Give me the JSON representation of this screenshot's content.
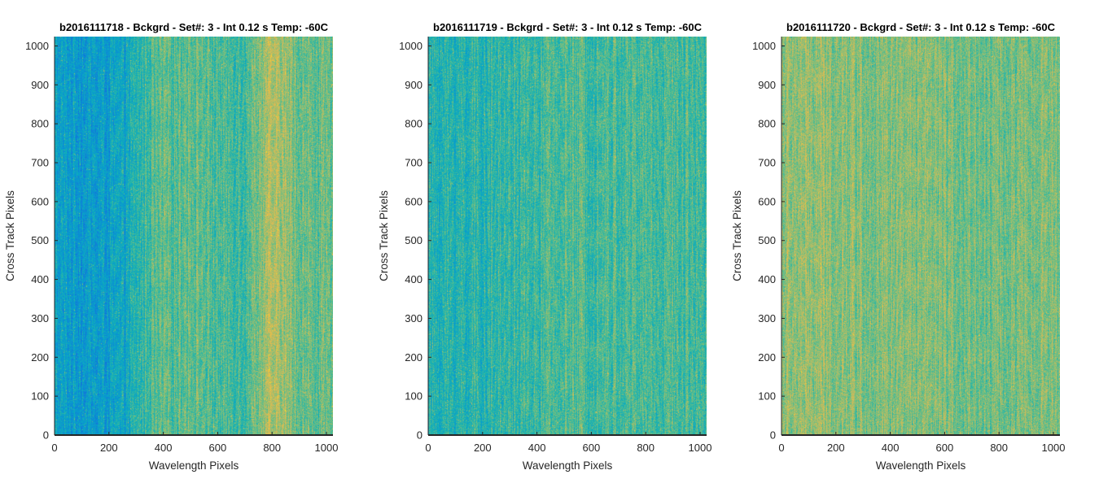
{
  "chart_data": [
    {
      "type": "heatmap",
      "title": "b2016111718 - Bckgrd - Set#: 3 - Int 0.12 s Temp: -60C",
      "xlabel": "Wavelength Pixels",
      "ylabel": "Cross Track Pixels",
      "xlim": [
        0,
        1024
      ],
      "ylim": [
        0,
        1024
      ],
      "xticks": [
        0,
        200,
        400,
        600,
        800,
        1000
      ],
      "yticks": [
        0,
        100,
        200,
        300,
        400,
        500,
        600,
        700,
        800,
        900,
        1000
      ],
      "colormap": "parula",
      "color_profile": {
        "x": [
          0,
          150,
          250,
          350,
          500,
          600,
          700,
          780,
          830,
          900,
          1024
        ],
        "level": [
          0.32,
          0.3,
          0.33,
          0.47,
          0.52,
          0.47,
          0.47,
          0.6,
          0.6,
          0.52,
          0.5
        ]
      }
    },
    {
      "type": "heatmap",
      "title": "b2016111719 - Bckgrd - Set#: 3 - Int 0.12 s Temp: -60C",
      "xlabel": "Wavelength Pixels",
      "ylabel": "Cross Track Pixels",
      "xlim": [
        0,
        1024
      ],
      "ylim": [
        0,
        1024
      ],
      "xticks": [
        0,
        200,
        400,
        600,
        800,
        1000
      ],
      "yticks": [
        0,
        100,
        200,
        300,
        400,
        500,
        600,
        700,
        800,
        900,
        1000
      ],
      "colormap": "parula",
      "color_profile": {
        "x": [
          0,
          200,
          400,
          500,
          700,
          1024
        ],
        "level": [
          0.4,
          0.42,
          0.45,
          0.48,
          0.47,
          0.47
        ]
      }
    },
    {
      "type": "heatmap",
      "title": "b2016111720 - Bckgrd - Set#: 3 - Int 0.12 s Temp: -60C",
      "xlabel": "Wavelength Pixels",
      "ylabel": "Cross Track Pixels",
      "xlim": [
        0,
        1024
      ],
      "ylim": [
        0,
        1024
      ],
      "xticks": [
        0,
        200,
        400,
        600,
        800,
        1000
      ],
      "yticks": [
        0,
        100,
        200,
        300,
        400,
        500,
        600,
        700,
        800,
        900,
        1000
      ],
      "colormap": "parula",
      "color_profile": {
        "x": [
          0,
          200,
          400,
          600,
          800,
          1024
        ],
        "level": [
          0.57,
          0.57,
          0.55,
          0.54,
          0.53,
          0.54
        ]
      }
    }
  ]
}
